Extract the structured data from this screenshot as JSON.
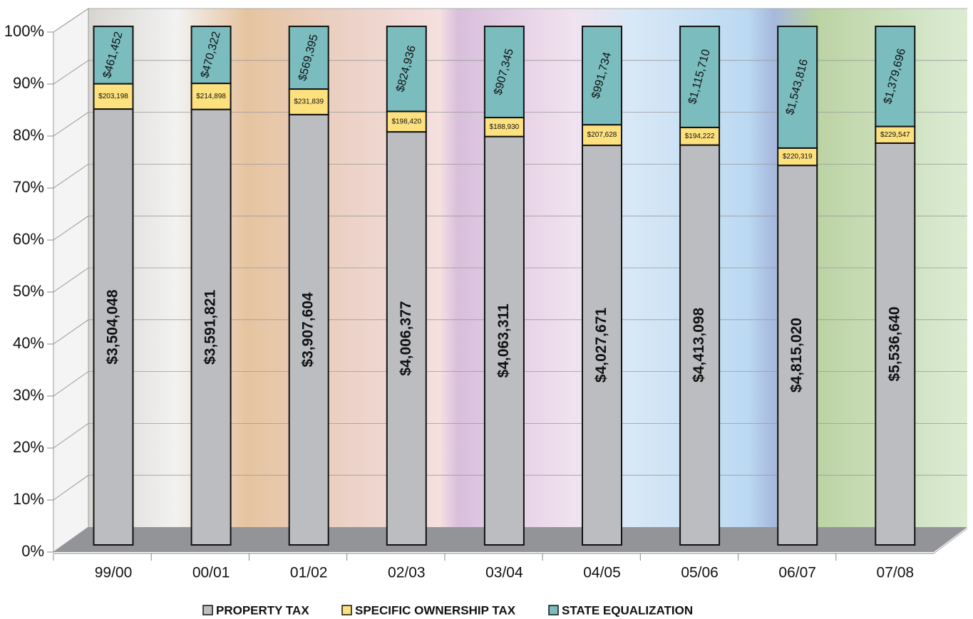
{
  "chart_data": {
    "type": "bar",
    "stacked": "percent",
    "categories": [
      "99/00",
      "00/01",
      "01/02",
      "02/03",
      "03/04",
      "04/05",
      "05/06",
      "06/07",
      "07/08"
    ],
    "series": [
      {
        "name": "PROPERTY TAX",
        "color": "#bcbdc0",
        "values": [
          3504048,
          3591821,
          3907604,
          4006377,
          4063311,
          4027671,
          4413098,
          4815020,
          5536640
        ],
        "value_labels": [
          "$3,504,048",
          "$3,591,821",
          "$3,907,604",
          "$4,006,377",
          "$4,063,311",
          "$4,027,671",
          "$4,413,098",
          "$4,815,020",
          "$5,536,640"
        ]
      },
      {
        "name": "SPECIFIC OWNERSHIP TAX",
        "color": "#fde17f",
        "values": [
          203198,
          214898,
          231839,
          198420,
          188930,
          207628,
          194222,
          220319,
          229547
        ],
        "value_labels": [
          "$203,198",
          "$214,898",
          "$231,839",
          "$198,420",
          "$188,930",
          "$207,628",
          "$194,222",
          "$220,319",
          "$229,547"
        ]
      },
      {
        "name": "STATE EQUALIZATION",
        "color": "#7bbcbf",
        "values": [
          461452,
          470322,
          569395,
          824936,
          907345,
          991734,
          1115710,
          1543816,
          1379696
        ],
        "value_labels": [
          "$461,452",
          "$470,322",
          "$569,395",
          "$824,936",
          "$907,345",
          "$991,734",
          "$1,115,710",
          "$1,543,816",
          "$1,379,696"
        ]
      }
    ],
    "ylim": [
      0,
      100
    ],
    "yticks": [
      {
        "value": 0,
        "label": "0%"
      },
      {
        "value": 10,
        "label": "10%"
      },
      {
        "value": 20,
        "label": "20%"
      },
      {
        "value": 30,
        "label": "30%"
      },
      {
        "value": 40,
        "label": "40%"
      },
      {
        "value": 50,
        "label": "50%"
      },
      {
        "value": 60,
        "label": "60%"
      },
      {
        "value": 70,
        "label": "70%"
      },
      {
        "value": 80,
        "label": "80%"
      },
      {
        "value": 90,
        "label": "90%"
      },
      {
        "value": 100,
        "label": "100%"
      }
    ],
    "grid": true,
    "legend": "bottom"
  }
}
